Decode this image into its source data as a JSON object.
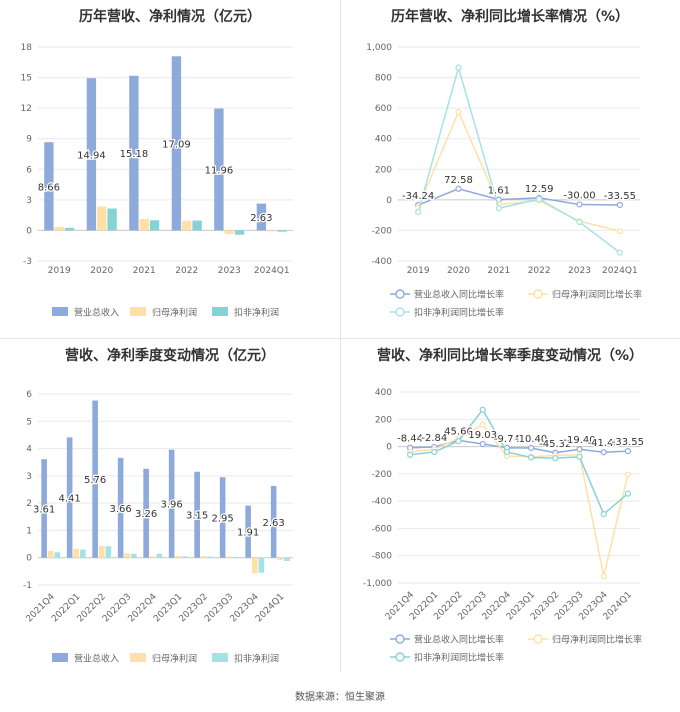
{
  "source_label": "数据来源：恒生聚源",
  "chart_data": [
    {
      "type": "bar",
      "title": "历年营收、净利情况（亿元）",
      "categories": [
        "2019",
        "2020",
        "2021",
        "2022",
        "2023",
        "2024Q1"
      ],
      "ylim": [
        -3,
        18
      ],
      "yticks": [
        -3,
        0,
        3,
        6,
        9,
        12,
        15,
        18
      ],
      "grid": true,
      "legend_position": "bottom",
      "label_series": 0,
      "series": [
        {
          "name": "营业总收入",
          "color": "#8eaadb",
          "values": [
            8.66,
            14.94,
            15.18,
            17.09,
            11.96,
            2.63
          ],
          "labels": [
            "8.66",
            "14.94",
            "15.18",
            "17.09",
            "11.96",
            "2.63"
          ]
        },
        {
          "name": "归母净利润",
          "color": "#ffe0a6",
          "values": [
            0.35,
            2.35,
            1.12,
            0.95,
            -0.34,
            -0.09
          ]
        },
        {
          "name": "扣非净利润",
          "color": "#86d3d6",
          "values": [
            0.25,
            2.15,
            1.0,
            0.97,
            -0.42,
            -0.12
          ]
        }
      ]
    },
    {
      "type": "line",
      "title": "历年营收、净利同比增长率情况（%）",
      "categories": [
        "2019",
        "2020",
        "2021",
        "2022",
        "2023",
        "2024Q1"
      ],
      "ylim": [
        -400,
        1000
      ],
      "yticks": [
        -400,
        -200,
        0,
        200,
        400,
        600,
        800,
        "1,000"
      ],
      "ytick_values": [
        -400,
        -200,
        0,
        200,
        400,
        600,
        800,
        1000
      ],
      "grid": true,
      "legend_position": "bottom",
      "label_series": 0,
      "series": [
        {
          "name": "营业总收入同比增长率",
          "color": "#8eaadb",
          "values": [
            -34.24,
            72.58,
            1.61,
            12.59,
            -30.0,
            -33.55
          ],
          "labels": [
            "-34.24",
            "72.58",
            "1.61",
            "12.59",
            "-30.00",
            "-33.55"
          ]
        },
        {
          "name": "归母净利润同比增长率",
          "color": "#ffe0a6",
          "values": [
            -50,
            575,
            -30,
            -5,
            -140,
            -205
          ]
        },
        {
          "name": "扣非净利润同比增长率",
          "color": "#a6e2e4",
          "values": [
            -80,
            865,
            -55,
            5,
            -145,
            -345
          ]
        }
      ]
    },
    {
      "type": "bar",
      "title": "营收、净利季度变动情况（亿元）",
      "categories": [
        "2021Q4",
        "2022Q1",
        "2022Q2",
        "2022Q3",
        "2022Q4",
        "2023Q1",
        "2023Q2",
        "2023Q3",
        "2023Q4",
        "2024Q1"
      ],
      "ylim": [
        -1,
        6
      ],
      "yticks": [
        -1,
        0,
        1,
        2,
        3,
        4,
        5,
        6
      ],
      "grid": true,
      "legend_position": "bottom",
      "label_series": 0,
      "series": [
        {
          "name": "营业总收入",
          "color": "#8eaadb",
          "values": [
            3.61,
            4.41,
            5.76,
            3.66,
            3.26,
            3.96,
            3.15,
            2.95,
            1.91,
            2.63
          ],
          "labels": [
            "3.61",
            "4.41",
            "5.76",
            "3.66",
            "3.26",
            "3.96",
            "3.15",
            "2.95",
            "1.91",
            "2.63"
          ]
        },
        {
          "name": "归母净利润",
          "color": "#ffe0a6",
          "values": [
            0.25,
            0.33,
            0.43,
            0.16,
            0.05,
            0.07,
            0.06,
            0.04,
            -0.57,
            -0.09
          ]
        },
        {
          "name": "扣非净利润",
          "color": "#a6e2e4",
          "values": [
            0.2,
            0.3,
            0.42,
            0.14,
            0.15,
            0.05,
            0.04,
            0.03,
            -0.55,
            -0.12
          ]
        }
      ]
    },
    {
      "type": "line",
      "title": "营收、净利同比增长率季度变动情况（%）",
      "categories": [
        "2021Q4",
        "2022Q1",
        "2022Q2",
        "2022Q3",
        "2022Q4",
        "2023Q1",
        "2023Q2",
        "2023Q3",
        "2023Q4",
        "2024Q1"
      ],
      "ylim": [
        -1000,
        400
      ],
      "yticks": [
        "-1,000",
        -800,
        -600,
        -400,
        -200,
        0,
        200,
        400
      ],
      "ytick_values": [
        -1000,
        -800,
        -600,
        -400,
        -200,
        0,
        200,
        400
      ],
      "grid": true,
      "legend_position": "bottom",
      "label_series": 0,
      "series": [
        {
          "name": "营业总收入同比增长率",
          "color": "#8eaadb",
          "values": [
            -8.44,
            -2.84,
            45.66,
            19.03,
            -9.74,
            -10.4,
            -45.32,
            -19.4,
            -41.4,
            -33.55
          ],
          "labels": [
            "-8.44",
            "-2.84",
            "45.66",
            "19.03",
            "-9.74",
            "-10.40",
            "-45.32",
            "-19.40",
            "-41.40",
            "-33.55"
          ]
        },
        {
          "name": "归母净利润同比增长率",
          "color": "#ffe0a6",
          "values": [
            -40,
            -20,
            60,
            160,
            -70,
            -75,
            -65,
            -60,
            -950,
            -205
          ]
        },
        {
          "name": "扣非净利润同比增长率",
          "color": "#86d3d6",
          "values": [
            -60,
            -40,
            40,
            270,
            -40,
            -80,
            -85,
            -75,
            -495,
            -345
          ]
        }
      ]
    }
  ]
}
